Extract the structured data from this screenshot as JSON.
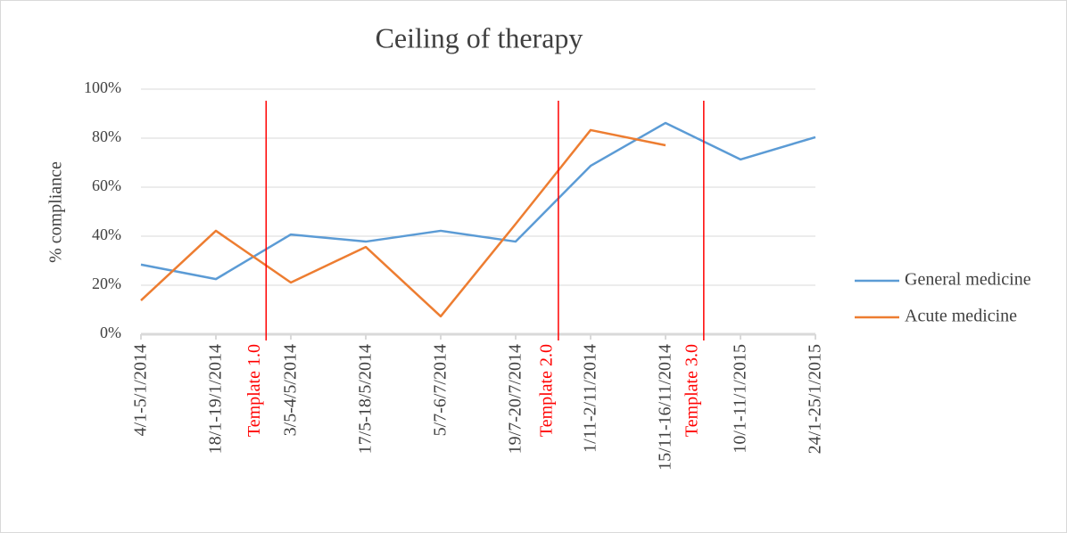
{
  "chart_data": {
    "type": "line",
    "title": "Ceiling of therapy",
    "y_label": "% compliance",
    "categories": [
      "4/1-5/1/2014",
      "18/1-19/1/2014",
      "3/5-4/5/2014",
      "17/5-18/5/2014",
      "5/7-6/7/2014",
      "19/7-20/7/2014",
      "1/11-2/11/2014",
      "15/11-16/11/2014",
      "10/1-11/1/2015",
      "24/1-25/1/2015"
    ],
    "series": [
      {
        "name": "General medicine",
        "color": "#5b9bd5",
        "values": [
          28.4,
          22.5,
          40.7,
          37.8,
          42.2,
          37.8,
          68.7,
          86.2,
          71.3,
          80.4
        ]
      },
      {
        "name": "Acute medicine",
        "color": "#ed7d31",
        "values": [
          13.8,
          42.2,
          21.1,
          35.6,
          7.3,
          45,
          83.3,
          77.1,
          null,
          null
        ]
      }
    ],
    "ylim": [
      0,
      100
    ],
    "yticks": [
      {
        "value": 0,
        "label": "0%"
      },
      {
        "value": 20,
        "label": "20%"
      },
      {
        "value": 40,
        "label": "40%"
      },
      {
        "value": 60,
        "label": "60%"
      },
      {
        "value": 80,
        "label": "80%"
      },
      {
        "value": 100,
        "label": "100%"
      }
    ],
    "grid": true,
    "legend": "right",
    "annotations": [
      {
        "label": "Template 1.0",
        "x": 1.67,
        "color": "#ff0000"
      },
      {
        "label": "Template 2.0",
        "x": 5.57,
        "color": "#ff0000"
      },
      {
        "label": "Template 3.0",
        "x": 7.51,
        "color": "#ff0000"
      }
    ]
  }
}
